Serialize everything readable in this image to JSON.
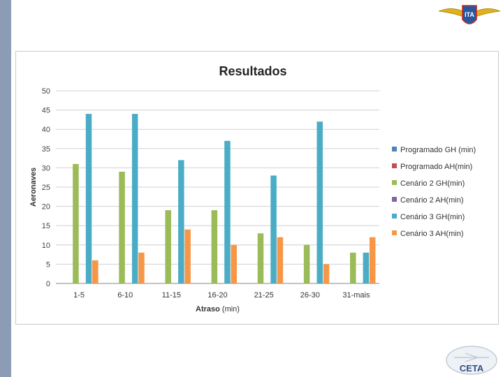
{
  "logos": {
    "top_text": "ITA",
    "bottom_text": "CETA"
  },
  "chart_data": {
    "type": "bar",
    "title": "Resultados",
    "xlabel_bold": "Atraso",
    "xlabel_rest": " (min)",
    "ylabel": "Aeronaves",
    "ylim": [
      0,
      50
    ],
    "yticks": [
      0,
      5,
      10,
      15,
      20,
      25,
      30,
      35,
      40,
      45,
      50
    ],
    "grid": true,
    "legend_position": "right",
    "categories": [
      "1-5",
      "6-10",
      "11-15",
      "16-20",
      "21-25",
      "26-30",
      "31-mais"
    ],
    "series": [
      {
        "name": "Programado GH (min)",
        "color": "#4f81bd",
        "values": [
          0,
          0,
          0,
          0,
          0,
          0,
          0
        ]
      },
      {
        "name": "Programado AH(min)",
        "color": "#c0504d",
        "values": [
          0,
          0,
          0,
          0,
          0,
          0,
          0
        ]
      },
      {
        "name": "Cenário 2 GH(min)",
        "color": "#9bbb59",
        "values": [
          31,
          29,
          19,
          19,
          13,
          10,
          8
        ]
      },
      {
        "name": "Cenário 2 AH(min)",
        "color": "#8064a2",
        "values": [
          0,
          0,
          0,
          0,
          0,
          0,
          0
        ]
      },
      {
        "name": "Cenário 3 GH(min)",
        "color": "#4bacc6",
        "values": [
          44,
          44,
          32,
          37,
          28,
          42,
          8
        ]
      },
      {
        "name": "Cenário 3 AH(min)",
        "color": "#f79646",
        "values": [
          6,
          8,
          14,
          10,
          12,
          5,
          12
        ]
      }
    ]
  }
}
